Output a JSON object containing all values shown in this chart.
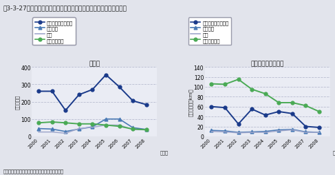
{
  "title": "嘶3-3-27　主要生鮮野菜４品目の輸入量とフード・マイレージの推移",
  "source": "資料：（独）国立環境研究所資料より環境省作成",
  "years": [
    2000,
    2001,
    2002,
    2003,
    2004,
    2005,
    2006,
    2007,
    2008
  ],
  "left_title": "輸入量",
  "left_ylabel": "（千トン）",
  "left_ylim": [
    0,
    400
  ],
  "left_yticks": [
    0,
    100,
    200,
    300,
    400
  ],
  "right_title": "フード・マイレージ",
  "right_ylabel": "（百万トン・km）",
  "right_ylim": [
    0,
    140
  ],
  "right_yticks": [
    0,
    20,
    40,
    60,
    80,
    100,
    120,
    140
  ],
  "series": {
    "tamanegi": {
      "label": "たまねぎ（一般品）",
      "color": "#1a3a8a",
      "marker": "o",
      "linewidth": 1.4,
      "markersize": 3.5,
      "import": [
        260,
        260,
        150,
        240,
        270,
        355,
        285,
        205,
        183
      ],
      "foodmile": [
        60,
        58,
        25,
        55,
        43,
        50,
        46,
        20,
        18
      ]
    },
    "ninjin": {
      "label": "にんじん",
      "color": "#4a7ab5",
      "marker": "^",
      "linewidth": 1.2,
      "markersize": 3.5,
      "import": [
        45,
        42,
        28,
        42,
        55,
        100,
        100,
        50,
        40
      ],
      "foodmile": [
        12,
        11,
        8,
        9,
        10,
        13,
        14,
        9,
        8
      ]
    },
    "negi": {
      "label": "ねぎ",
      "color": "#a0a8cc",
      "marker": "None",
      "linewidth": 1.1,
      "markersize": 3,
      "import": [
        25,
        25,
        18,
        45,
        52,
        65,
        65,
        40,
        38
      ],
      "foodmile": [
        10,
        9,
        7,
        8,
        8,
        11,
        13,
        8,
        8
      ]
    },
    "broccoli": {
      "label": "ブロッコリー",
      "color": "#4aaa55",
      "marker": "o",
      "linewidth": 1.4,
      "markersize": 3.5,
      "import": [
        78,
        83,
        78,
        72,
        72,
        65,
        58,
        42,
        38
      ],
      "foodmile": [
        106,
        105,
        115,
        95,
        86,
        68,
        68,
        62,
        50
      ]
    }
  },
  "bg_color": "#e2e4ec",
  "plot_bg_color": "#eaecf4",
  "grid_color": "#b8bcd0",
  "font_color": "#222222"
}
